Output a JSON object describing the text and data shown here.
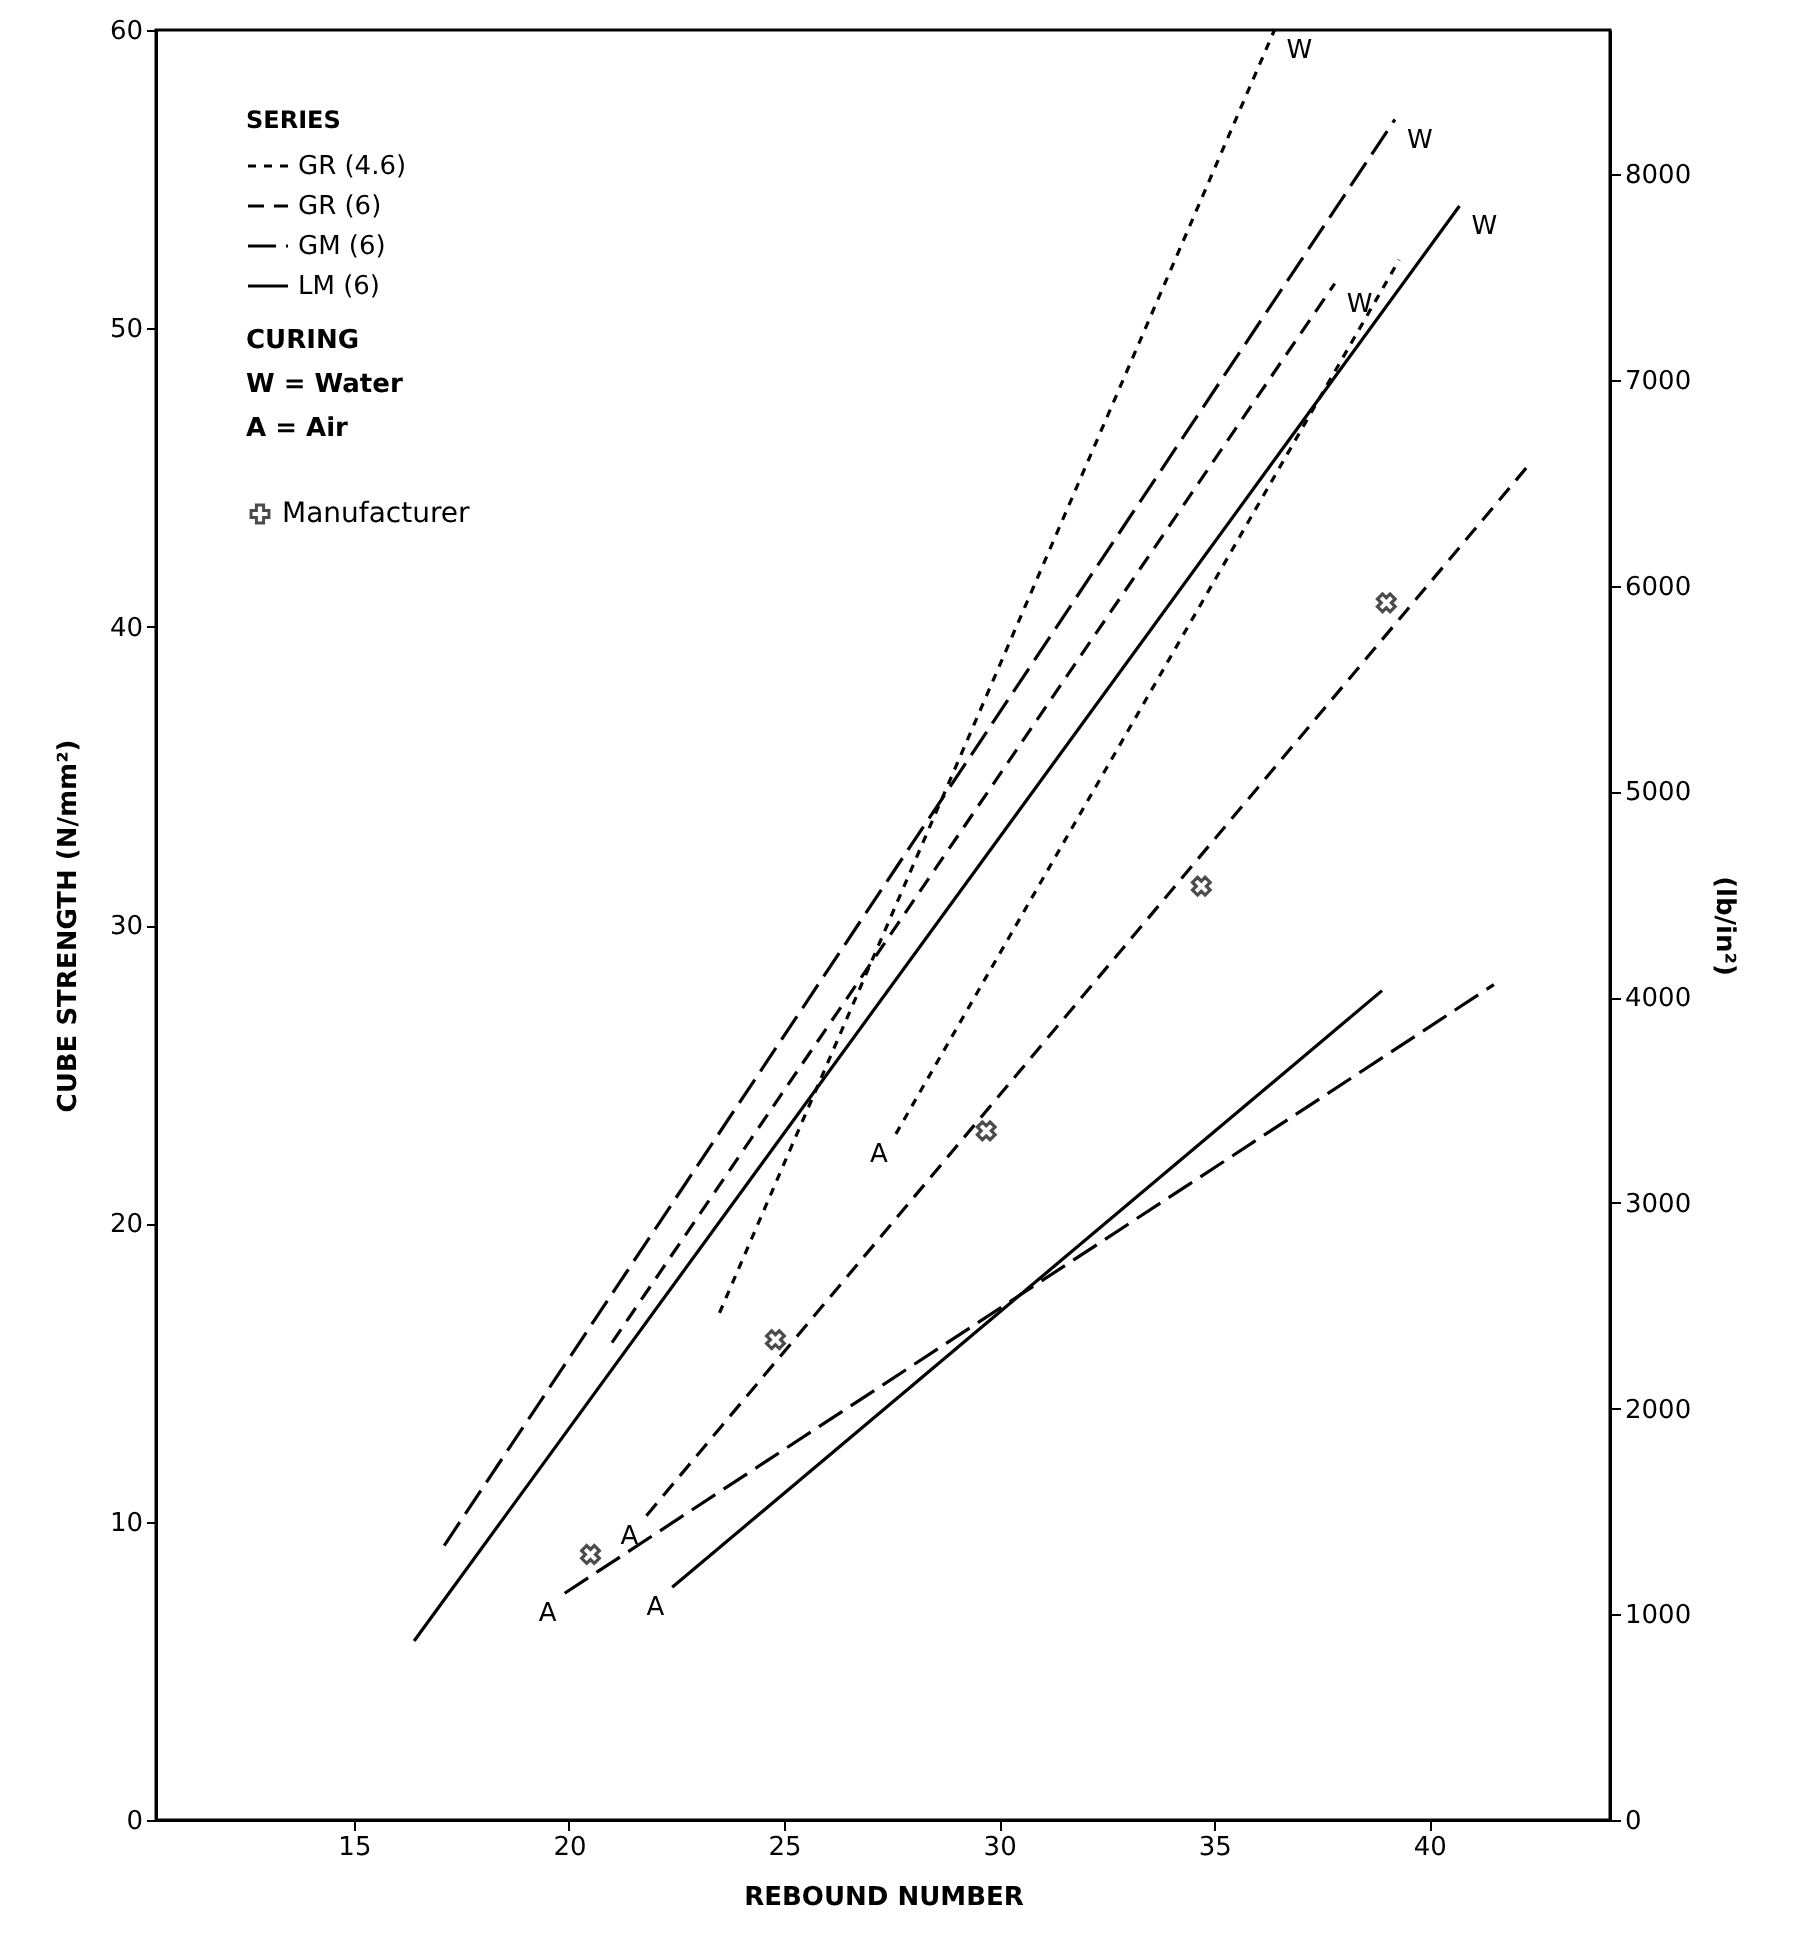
{
  "chart_data": {
    "type": "line",
    "xlabel": "REBOUND NUMBER",
    "ylabel": "CUBE STRENGTH (N/mm²)",
    "y2label": "(lb/in²)",
    "xlim": [
      10.4,
      44.2
    ],
    "xticks": [
      15,
      20,
      25,
      30,
      35,
      40
    ],
    "ylim": [
      0,
      60
    ],
    "yticks": [
      0,
      10,
      20,
      30,
      40,
      50,
      60
    ],
    "y2lim": [
      0,
      8700
    ],
    "y2ticks": [
      0,
      1000,
      2000,
      3000,
      4000,
      5000,
      6000,
      7000,
      8000
    ],
    "legend": "top left",
    "legend_title": "SERIES",
    "grid": false,
    "series": [
      {
        "name": "GR (4.6)",
        "color": "#000000",
        "line_style": "dotted",
        "x": [
          23.5,
          36.4,
          null,
          27.6,
          39.3
        ],
        "values": [
          17.0,
          60,
          null,
          23.0,
          52.3
        ]
      },
      {
        "name": "GR (6)",
        "color": "#000000",
        "line_style": "dashed",
        "x": [
          21.0,
          37.8,
          null,
          21.8,
          42.3
        ],
        "values": [
          16.0,
          51.5,
          null,
          10.2,
          45.4
        ]
      },
      {
        "name": "GM (6)",
        "color": "#000000",
        "line_style": "dashed",
        "x": [
          17.1,
          39.2,
          null,
          19.9,
          41.5
        ],
        "values": [
          9.2,
          57.0,
          null,
          7.6,
          28.0
        ]
      },
      {
        "name": "LM (6)",
        "color": "#000000",
        "line_style": "solid",
        "x": [
          16.4,
          40.7,
          null,
          22.4,
          38.9
        ],
        "values": [
          6.0,
          54.1,
          null,
          7.8,
          27.8
        ]
      },
      {
        "name": "Manufacturer",
        "type": "scatter",
        "color": "#000000",
        "marker": "cross",
        "x": [
          20.5,
          24.8,
          29.7,
          34.7,
          39.0
        ],
        "values": [
          8.9,
          16.1,
          23.1,
          31.3,
          40.8
        ]
      }
    ],
    "annotations": [
      "CURING",
      "W = Water",
      "A = Air",
      {
        "text": "W",
        "x": 36.4,
        "y": 60
      },
      {
        "text": "W",
        "x": 39.2,
        "y": 57.0
      },
      {
        "text": "W",
        "x": 40.7,
        "y": 54.1
      },
      {
        "text": "W",
        "x": 37.8,
        "y": 51.5
      },
      {
        "text": "A",
        "x": 19.9,
        "y": 7.6
      },
      {
        "text": "A",
        "x": 21.8,
        "y": 10.2
      },
      {
        "text": "A",
        "x": 22.4,
        "y": 7.8
      },
      {
        "text": "A",
        "x": 27.6,
        "y": 23.0
      }
    ]
  }
}
